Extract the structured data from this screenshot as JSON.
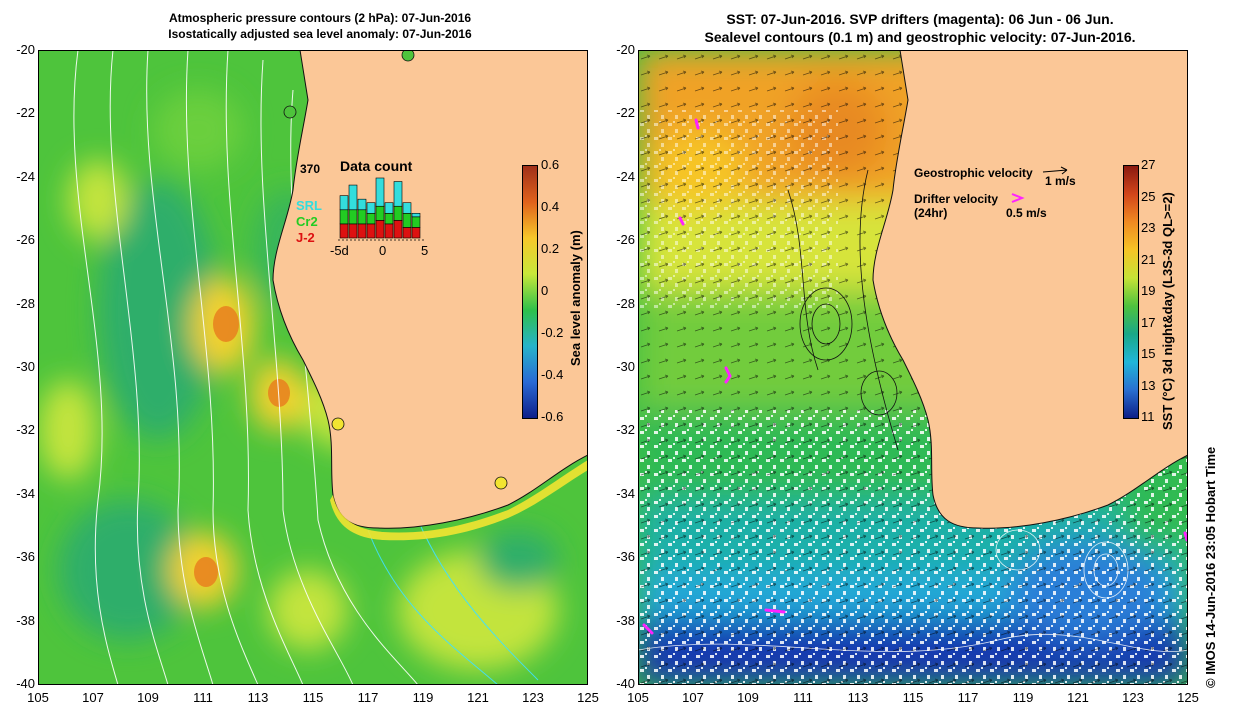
{
  "left": {
    "title_line1": "Atmospheric pressure contours (2 hPa): 07-Jun-2016",
    "title_line2": "Isostatically adjusted sea level anomaly: 07-Jun-2016",
    "colorbar": {
      "label": "Sea level anomaly (m)",
      "ticks": [
        "0.6",
        "0.4",
        "0.2",
        "0",
        "-0.2",
        "-0.4",
        "-0.6"
      ],
      "colors": [
        "#a0301a",
        "#e0621c",
        "#f7c72a",
        "#c8e83a",
        "#2fc04a",
        "#27b3c9",
        "#2a6ad4",
        "#0d1f8a"
      ]
    },
    "data_count": {
      "max_label": "370",
      "title": "Data count",
      "legend": [
        "SRL",
        "Cr2",
        "J-2"
      ],
      "legend_colors": [
        "#33dddd",
        "#22cc22",
        "#dd1111"
      ],
      "x_ticks": [
        "-5d",
        "0",
        "5"
      ],
      "bars": [
        {
          "SRL": 4,
          "Cr2": 4,
          "J2": 4
        },
        {
          "SRL": 7,
          "Cr2": 4,
          "J2": 4
        },
        {
          "SRL": 3,
          "Cr2": 4,
          "J2": 4
        },
        {
          "SRL": 3,
          "Cr2": 3,
          "J2": 4
        },
        {
          "SRL": 8,
          "Cr2": 4,
          "J2": 5
        },
        {
          "SRL": 3,
          "Cr2": 3,
          "J2": 4
        },
        {
          "SRL": 7,
          "Cr2": 4,
          "J2": 5
        },
        {
          "SRL": 3,
          "Cr2": 4,
          "J2": 3
        },
        {
          "SRL": 1,
          "Cr2": 3,
          "J2": 3
        }
      ]
    }
  },
  "right": {
    "title_line1": "SST: 07-Jun-2016. SVP drifters (magenta): 06 Jun - 06 Jun.",
    "title_line2": "Sealevel contours (0.1 m) and geostrophic velocity: 07-Jun-2016.",
    "colorbar": {
      "label": "SST (°C) 3d night&day (L3S-3d QL>=2)",
      "ticks": [
        "27",
        "25",
        "23",
        "21",
        "19",
        "17",
        "15",
        "13",
        "11"
      ],
      "colors": [
        "#8a1a10",
        "#d2451a",
        "#f08a22",
        "#f6c426",
        "#c6e336",
        "#4fc23e",
        "#1aa888",
        "#21b6d8",
        "#2a6fd0",
        "#0c1e88"
      ]
    },
    "legend": {
      "geo_label": "Geostrophic velocity",
      "geo_scale": "1 m/s",
      "drifter_label": "Drifter velocity",
      "drifter_sub": "(24hr)",
      "drifter_scale": "0.5 m/s"
    }
  },
  "axes": {
    "x_ticks": [
      "105",
      "107",
      "109",
      "111",
      "113",
      "115",
      "117",
      "119",
      "121",
      "123",
      "125"
    ],
    "y_ticks": [
      "-20",
      "-22",
      "-24",
      "-26",
      "-28",
      "-30",
      "-32",
      "-34",
      "-36",
      "-38",
      "-40"
    ],
    "lon_range": [
      105,
      125
    ],
    "lat_range": [
      -40,
      -20
    ]
  },
  "colors": {
    "land": "#fbc797",
    "coast": "#111111",
    "drifter": "#ff22ff"
  },
  "credit": "© IMOS 14-Jun-2016 23:05 Hobart Time"
}
